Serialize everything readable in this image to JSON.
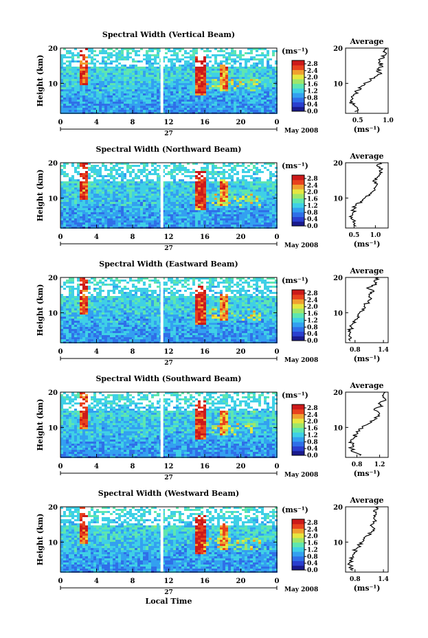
{
  "figure": {
    "x_axis_label": "Local Time",
    "month_year_label": "May 2008",
    "day_label": "27",
    "y_axis_label": "Height (km)",
    "unit_label": "(ms⁻¹)",
    "average_title": "Average",
    "average_xlabel": "(ms⁻¹)"
  },
  "colorbar": {
    "ticks": [
      "2.8",
      "2.4",
      "2.0",
      "1.6",
      "1.2",
      "0.8",
      "0.4",
      "0.0"
    ],
    "colors": [
      "#1a1a8c",
      "#2a3fcf",
      "#2f6fe8",
      "#33a0f0",
      "#3fd0e6",
      "#5ee6b0",
      "#9ee66a",
      "#e6e640",
      "#f0a030",
      "#e8421e",
      "#cc1a1a"
    ]
  },
  "chart_data": [
    {
      "type": "heatmap",
      "title": "Spectral Width (Vertical Beam)",
      "x_ticks": [
        "0",
        "4",
        "8",
        "12",
        "16",
        "20",
        "0"
      ],
      "xlim": [
        0,
        24
      ],
      "y_ticks": [
        "20",
        "10"
      ],
      "ylim": [
        1.5,
        20
      ],
      "colorbar_range": [
        0.0,
        3.0
      ],
      "average": {
        "title": "Average",
        "x_ticks": [
          "0.5",
          "1.0"
        ],
        "xlim": [
          0.3,
          1.0
        ],
        "y_ticks": [
          "20",
          "10"
        ],
        "profile": {
          "height": [
            2,
            3,
            4,
            5,
            6,
            7,
            8,
            9,
            10,
            11,
            12,
            13,
            14,
            15,
            16,
            17,
            18,
            19,
            20
          ],
          "value": [
            0.45,
            0.5,
            0.42,
            0.38,
            0.4,
            0.45,
            0.5,
            0.55,
            0.6,
            0.72,
            0.8,
            0.88,
            0.82,
            0.9,
            0.85,
            0.88,
            0.95,
            0.92,
            0.95
          ]
        }
      }
    },
    {
      "type": "heatmap",
      "title": "Spectral Width (Northward Beam)",
      "x_ticks": [
        "0",
        "4",
        "8",
        "12",
        "16",
        "20",
        "0"
      ],
      "xlim": [
        0,
        24
      ],
      "y_ticks": [
        "20",
        "10"
      ],
      "ylim": [
        1.5,
        20
      ],
      "colorbar_range": [
        0.0,
        3.0
      ],
      "average": {
        "title": "Average",
        "x_ticks": [
          "0.5",
          "1.0"
        ],
        "xlim": [
          0.3,
          1.3
        ],
        "y_ticks": [
          "20",
          "10"
        ],
        "profile": {
          "height": [
            2,
            3,
            4,
            5,
            6,
            7,
            8,
            9,
            10,
            11,
            12,
            13,
            14,
            15,
            16,
            17,
            18,
            19,
            20
          ],
          "value": [
            0.55,
            0.5,
            0.45,
            0.45,
            0.48,
            0.5,
            0.55,
            0.65,
            0.75,
            0.85,
            0.95,
            1.0,
            1.05,
            0.95,
            1.05,
            1.1,
            1.15,
            1.05,
            1.1
          ]
        }
      }
    },
    {
      "type": "heatmap",
      "title": "Spectral Width (Eastward Beam)",
      "x_ticks": [
        "0",
        "4",
        "8",
        "12",
        "16",
        "20",
        "0"
      ],
      "xlim": [
        0,
        24
      ],
      "y_ticks": [
        "20",
        "10"
      ],
      "ylim": [
        1.5,
        20
      ],
      "colorbar_range": [
        0.0,
        3.0
      ],
      "average": {
        "title": "Average",
        "x_ticks": [
          "0.8",
          "1.4"
        ],
        "xlim": [
          0.6,
          1.5
        ],
        "y_ticks": [
          "20",
          "10"
        ],
        "profile": {
          "height": [
            2,
            3,
            4,
            5,
            6,
            7,
            8,
            9,
            10,
            11,
            12,
            13,
            14,
            15,
            16,
            17,
            18,
            19,
            20
          ],
          "value": [
            0.7,
            0.72,
            0.68,
            0.7,
            0.72,
            0.75,
            0.8,
            0.85,
            0.9,
            0.95,
            1.0,
            1.08,
            1.15,
            1.1,
            1.2,
            1.05,
            1.25,
            1.2,
            1.3
          ]
        }
      }
    },
    {
      "type": "heatmap",
      "title": "Spectral Width (Southward Beam)",
      "x_ticks": [
        "0",
        "4",
        "8",
        "12",
        "16",
        "20",
        "0"
      ],
      "xlim": [
        0,
        24
      ],
      "y_ticks": [
        "20",
        "10"
      ],
      "ylim": [
        1.5,
        20
      ],
      "colorbar_range": [
        0.0,
        3.0
      ],
      "average": {
        "title": "Average",
        "x_ticks": [
          "0.8",
          "1.2"
        ],
        "xlim": [
          0.6,
          1.35
        ],
        "y_ticks": [
          "20",
          "10"
        ],
        "profile": {
          "height": [
            2,
            3,
            4,
            5,
            6,
            7,
            8,
            9,
            10,
            11,
            12,
            13,
            14,
            15,
            16,
            17,
            18,
            19,
            20
          ],
          "value": [
            0.85,
            0.75,
            0.7,
            0.72,
            0.7,
            0.75,
            0.78,
            0.85,
            0.9,
            1.0,
            1.1,
            1.15,
            1.2,
            1.1,
            1.25,
            1.2,
            1.3,
            1.25,
            1.3
          ]
        }
      }
    },
    {
      "type": "heatmap",
      "title": "Spectral Width (Westward Beam)",
      "x_ticks": [
        "0",
        "4",
        "8",
        "12",
        "16",
        "20",
        "0"
      ],
      "xlim": [
        0,
        24
      ],
      "y_ticks": [
        "20",
        "10"
      ],
      "ylim": [
        1.5,
        20
      ],
      "colorbar_range": [
        0.0,
        3.0
      ],
      "average": {
        "title": "Average",
        "x_ticks": [
          "0.8",
          "1.4"
        ],
        "xlim": [
          0.6,
          1.5
        ],
        "y_ticks": [
          "20",
          "10"
        ],
        "profile": {
          "height": [
            2,
            3,
            4,
            5,
            6,
            7,
            8,
            9,
            10,
            11,
            12,
            13,
            14,
            15,
            16,
            17,
            18,
            19,
            20
          ],
          "value": [
            0.75,
            0.7,
            0.68,
            0.72,
            0.75,
            0.78,
            0.82,
            0.88,
            0.95,
            1.0,
            1.1,
            1.15,
            1.2,
            1.15,
            1.25,
            1.2,
            1.25,
            1.2,
            1.3
          ]
        }
      }
    }
  ]
}
